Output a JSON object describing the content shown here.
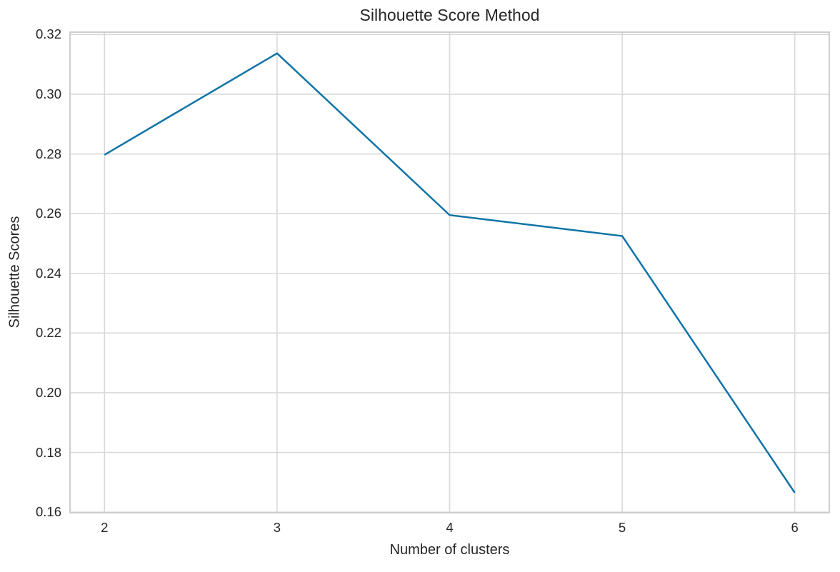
{
  "figure": {
    "background": "#ffffff"
  },
  "chart_data": {
    "type": "line",
    "title": "Silhouette Score Method",
    "xlabel": "Number of clusters",
    "ylabel": "Silhouette Scores",
    "x": [
      2,
      3,
      4,
      5,
      6
    ],
    "series": [
      {
        "name": "silhouette-score",
        "values": [
          0.2797,
          0.3137,
          0.2595,
          0.2525,
          0.1665
        ]
      }
    ],
    "xlim": [
      1.8,
      6.2
    ],
    "ylim": [
      0.1598,
      0.3208
    ],
    "xtick_values": [
      2,
      3,
      4,
      5,
      6
    ],
    "xtick_labels": [
      "2",
      "3",
      "4",
      "5",
      "6"
    ],
    "ytick_values": [
      0.16,
      0.18,
      0.2,
      0.22,
      0.24,
      0.26,
      0.28,
      0.3,
      0.32
    ],
    "ytick_labels": [
      "0.16",
      "0.18",
      "0.20",
      "0.22",
      "0.24",
      "0.26",
      "0.28",
      "0.30",
      "0.32"
    ],
    "grid": true,
    "legend": null,
    "markers": false,
    "colors": {
      "line": "#1074a7",
      "grid": "#d9d9d9",
      "spine": "#c9c9c9",
      "text": "#262626",
      "background": "#ffffff"
    }
  }
}
